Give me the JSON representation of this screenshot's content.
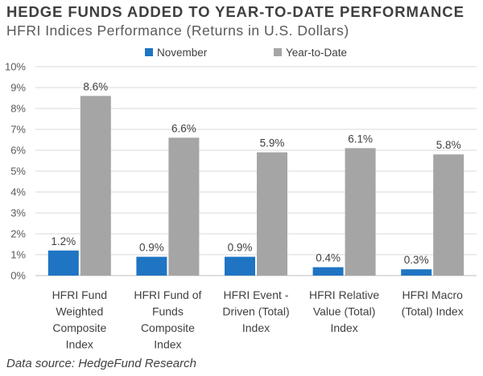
{
  "title": "HEDGE FUNDS ADDED TO YEAR-TO-DATE PERFORMANCE",
  "subtitle": "HFRI Indices Performance (Returns in U.S. Dollars)",
  "source": "Data source: HedgeFund Research",
  "colors": {
    "november": "#1f74c3",
    "ytd": "#a5a5a5",
    "grid": "#d9d9d9",
    "axis": "#bfbfbf"
  },
  "chart_data": {
    "type": "bar",
    "categories": [
      [
        "HFRI Fund",
        "Weighted",
        "Composite",
        "Index"
      ],
      [
        "HFRI Fund of",
        "Funds",
        "Composite",
        "Index"
      ],
      [
        "HFRI Event -",
        "Driven (Total)",
        "Index"
      ],
      [
        "HFRI Relative",
        "Value (Total)",
        "Index"
      ],
      [
        "HFRI Macro",
        "(Total) Index"
      ]
    ],
    "series": [
      {
        "name": "November",
        "values": [
          1.2,
          0.9,
          0.9,
          0.4,
          0.3
        ],
        "labels": [
          "1.2%",
          "0.9%",
          "0.9%",
          "0.4%",
          "0.3%"
        ]
      },
      {
        "name": "Year-to-Date",
        "values": [
          8.6,
          6.6,
          5.9,
          6.1,
          5.8
        ],
        "labels": [
          "8.6%",
          "6.6%",
          "5.9%",
          "6.1%",
          "5.8%"
        ]
      }
    ],
    "ylim": [
      0,
      10
    ],
    "yticks": [
      "0%",
      "1%",
      "2%",
      "3%",
      "4%",
      "5%",
      "6%",
      "7%",
      "8%",
      "9%",
      "10%"
    ],
    "grid": true,
    "legend": "top-center",
    "xlabel": "",
    "ylabel": ""
  }
}
